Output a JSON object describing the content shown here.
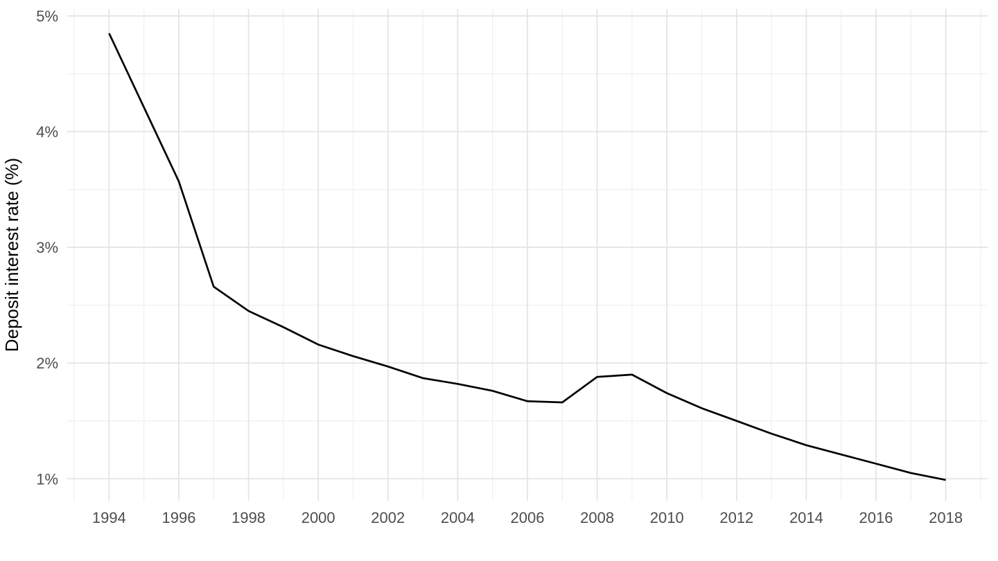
{
  "chart_data": {
    "type": "line",
    "title": "",
    "xlabel": "",
    "ylabel": "Deposit interest rate (%)",
    "legend": "none",
    "grid": "major+minor",
    "x": [
      1994,
      1995,
      1996,
      1997,
      1998,
      1999,
      2000,
      2001,
      2002,
      2003,
      2004,
      2005,
      2006,
      2007,
      2008,
      2009,
      2010,
      2011,
      2012,
      2013,
      2014,
      2015,
      2016,
      2017,
      2018
    ],
    "series": [
      {
        "name": "Deposit interest rate (%)",
        "values": [
          4.85,
          4.21,
          3.57,
          2.66,
          2.45,
          2.31,
          2.16,
          2.06,
          1.97,
          1.87,
          1.82,
          1.76,
          1.67,
          1.66,
          1.88,
          1.9,
          1.74,
          1.61,
          1.5,
          1.39,
          1.29,
          1.21,
          1.13,
          1.05,
          0.99
        ]
      }
    ],
    "xlim": [
      1992.8,
      2019.2
    ],
    "ylim": [
      0.81,
      5.06
    ],
    "x_ticks": {
      "values": [
        1994,
        1996,
        1998,
        2000,
        2002,
        2004,
        2006,
        2008,
        2010,
        2012,
        2014,
        2016,
        2018
      ],
      "labels": [
        "1994",
        "1996",
        "1998",
        "2000",
        "2002",
        "2004",
        "2006",
        "2008",
        "2010",
        "2012",
        "2014",
        "2016",
        "2018"
      ]
    },
    "y_ticks": {
      "values": [
        1,
        2,
        3,
        4,
        5
      ],
      "labels": [
        "1%",
        "2%",
        "3%",
        "4%",
        "5%"
      ]
    },
    "x_minor_ticks": [
      1993,
      1995,
      1997,
      1999,
      2001,
      2003,
      2005,
      2007,
      2009,
      2011,
      2013,
      2015,
      2017,
      2019
    ],
    "y_minor_ticks": [
      1.5,
      2.5,
      3.5,
      4.5
    ],
    "styles": {
      "line_color": "#000000",
      "grid_major_color": "#e3e3e3",
      "grid_minor_color": "#efefef",
      "tick_label_color": "#4d4d4d",
      "axis_title_color": "#000000",
      "background": "#ffffff"
    }
  }
}
